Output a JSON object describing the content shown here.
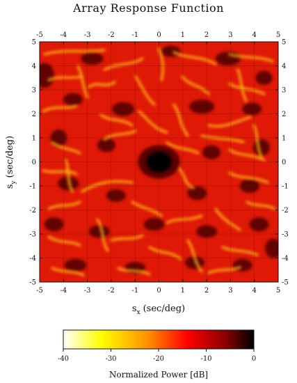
{
  "chart_data": {
    "type": "heatmap",
    "title": "Array Response Function",
    "xlabel": "s",
    "xlabel_sub": "x",
    "xlabel_unit": "(sec/deg)",
    "ylabel": "s",
    "ylabel_sub": "y",
    "ylabel_unit": "(sec/deg)",
    "xlim": [
      -5,
      5
    ],
    "ylim": [
      -5,
      5
    ],
    "xticks": [
      "-5",
      "-4",
      "-3",
      "-2",
      "-1",
      "0",
      "1",
      "2",
      "3",
      "4",
      "5"
    ],
    "yticks": [
      "5",
      "4",
      "3",
      "2",
      "1",
      "0",
      "-1",
      "-2",
      "-3",
      "-4",
      "-5"
    ],
    "grid": true,
    "peak": {
      "sx": 0,
      "sy": 0,
      "power_db": 0
    },
    "colorbar": {
      "label": "Normalized Power [dB]",
      "range": [
        -40,
        0
      ],
      "ticks": [
        "-40",
        "-30",
        "-20",
        "-10",
        "0"
      ],
      "colors": [
        "#ffffff",
        "#ffff00",
        "#ff8c00",
        "#ff0000",
        "#8b0000",
        "#000000"
      ]
    }
  }
}
